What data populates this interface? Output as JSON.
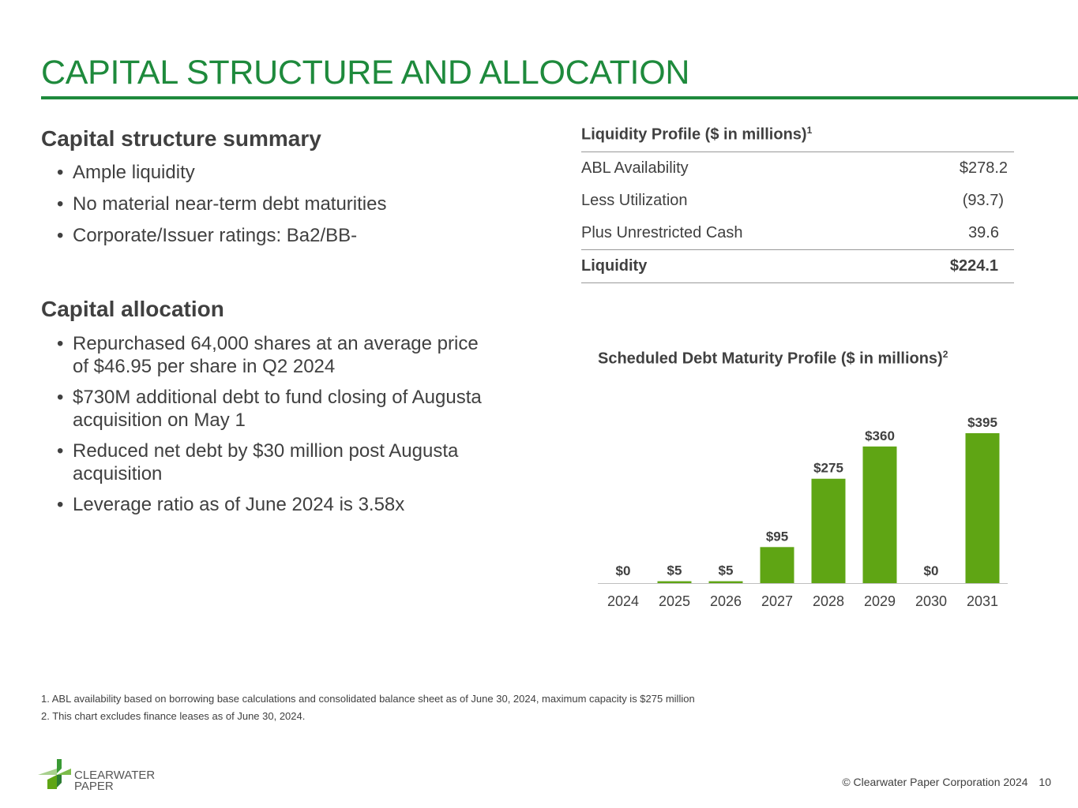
{
  "title": "CAPITAL STRUCTURE AND ALLOCATION",
  "summary": {
    "heading": "Capital structure summary",
    "bullets": [
      "Ample liquidity",
      "No material near-term debt maturities",
      "Corporate/Issuer ratings: Ba2/BB-"
    ]
  },
  "allocation": {
    "heading": "Capital allocation",
    "bullets": [
      "Repurchased 64,000 shares at an average price of $46.95 per share in Q2 2024",
      "$730M additional debt to fund closing of Augusta acquisition on May 1",
      "Reduced net debt by $30 million post Augusta acquisition",
      "Leverage ratio as of June 2024 is 3.58x"
    ]
  },
  "liquidity": {
    "heading": "Liquidity Profile ($ in millions)",
    "heading_note": "1",
    "rows": [
      {
        "label": "ABL Availability",
        "value": "$278.2"
      },
      {
        "label": "Less Utilization",
        "value": "(93.7)"
      },
      {
        "label": "Plus Unrestricted Cash",
        "value": "39.6"
      }
    ],
    "total": {
      "label": "Liquidity",
      "value": "$224.1"
    }
  },
  "chart_data": {
    "type": "bar",
    "title": "Scheduled Debt Maturity Profile ($ in millions)",
    "title_note": "2",
    "categories": [
      "2024",
      "2025",
      "2026",
      "2027",
      "2028",
      "2029",
      "2030",
      "2031"
    ],
    "values": [
      0,
      5,
      5,
      95,
      275,
      360,
      0,
      395
    ],
    "labels": [
      "$0",
      "$5",
      "$5",
      "$95",
      "$275",
      "$360",
      "$0",
      "$395"
    ],
    "xlabel": "",
    "ylabel": "",
    "ylim": [
      0,
      395
    ],
    "grid": false,
    "bar_color": "#5fa514"
  },
  "footnotes": [
    "1.  ABL availability based on borrowing base calculations and consolidated balance sheet as of June 30, 2024, maximum capacity is $275 million",
    "2.  This chart excludes finance leases as of June 30, 2024."
  ],
  "footer": {
    "logo_text": [
      "CLEARWATER",
      "PAPER"
    ],
    "copyright": "© Clearwater Paper Corporation 2024",
    "page": "10"
  }
}
